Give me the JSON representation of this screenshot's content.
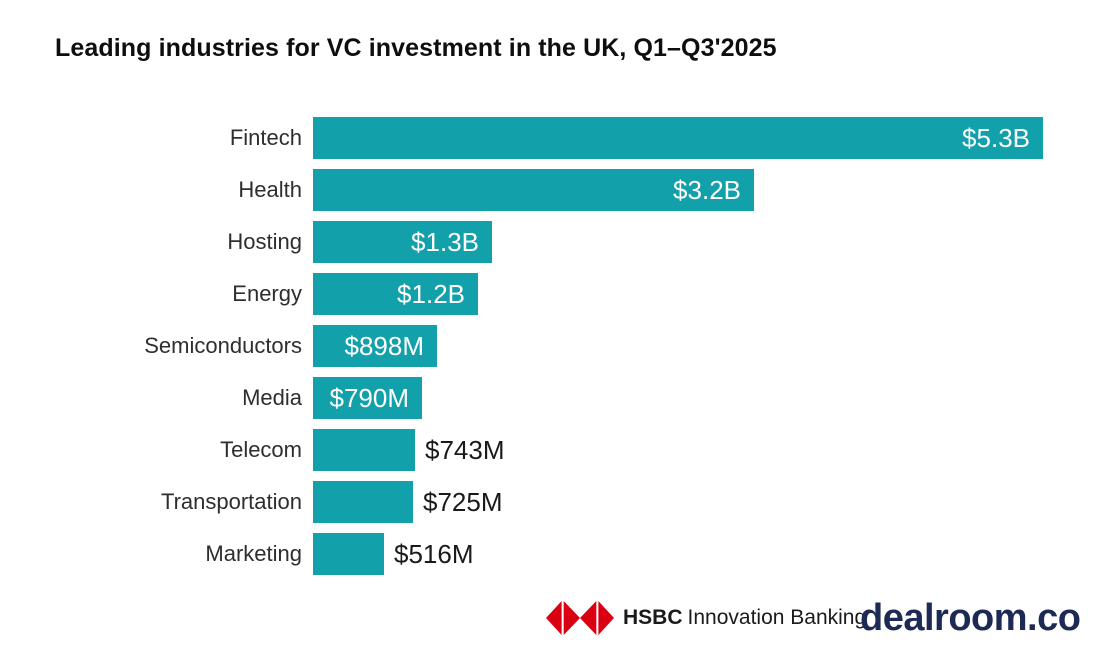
{
  "title": "Leading industries for VC investment in the UK, Q1–Q3'2025",
  "chart_data": {
    "type": "bar",
    "orientation": "horizontal",
    "title": "Leading industries for VC investment in the UK, Q1–Q3'2025",
    "xlabel": "",
    "ylabel": "",
    "xlim_musd": [
      0,
      5300
    ],
    "grid": false,
    "legend": false,
    "bar_color": "#12A0AA",
    "category_label_color": "#2e2e2e",
    "value_label_inside_color": "#ffffff",
    "value_label_outside_color": "#1a1a1a",
    "categories": [
      "Fintech",
      "Health",
      "Hosting",
      "Energy",
      "Semiconductors",
      "Media",
      "Telecom",
      "Transportation",
      "Marketing"
    ],
    "values_musd": [
      5300,
      3200,
      1300,
      1200,
      898,
      790,
      743,
      725,
      516
    ],
    "bars": [
      {
        "category": "Fintech",
        "value_musd": 5300,
        "label": "$5.3B",
        "label_position": "inside"
      },
      {
        "category": "Health",
        "value_musd": 3200,
        "label": "$3.2B",
        "label_position": "inside"
      },
      {
        "category": "Hosting",
        "value_musd": 1300,
        "label": "$1.3B",
        "label_position": "inside"
      },
      {
        "category": "Energy",
        "value_musd": 1200,
        "label": "$1.2B",
        "label_position": "inside"
      },
      {
        "category": "Semiconductors",
        "value_musd": 898,
        "label": "$898M",
        "label_position": "inside"
      },
      {
        "category": "Media",
        "value_musd": 790,
        "label": "$790M",
        "label_position": "inside"
      },
      {
        "category": "Telecom",
        "value_musd": 743,
        "label": "$743M",
        "label_position": "outside"
      },
      {
        "category": "Transportation",
        "value_musd": 725,
        "label": "$725M",
        "label_position": "outside"
      },
      {
        "category": "Marketing",
        "value_musd": 516,
        "label": "$516M",
        "label_position": "outside"
      }
    ]
  },
  "footer": {
    "hsbc": {
      "icon": "hsbc-hexagon-logo",
      "red": "#DB0011",
      "brand_bold": "HSBC",
      "brand_rest": "Innovation Banking"
    },
    "dealroom": {
      "text": "dealroom.co",
      "color": "#1E2A56"
    }
  }
}
